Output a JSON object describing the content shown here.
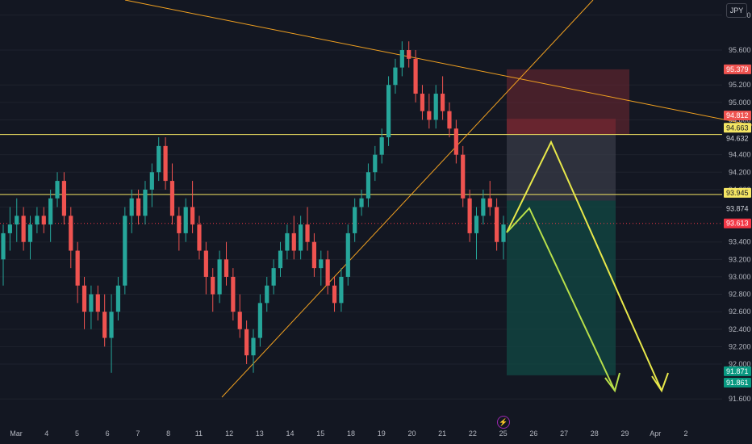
{
  "currency_label": "JPY",
  "event_icon": "lightning-icon",
  "colors": {
    "background": "#131722",
    "up": "#26a69a",
    "down": "#ef5350",
    "level": "#f5e663",
    "trendline": "#f0a020",
    "projection": "#e8e84a",
    "projection2": "#b8e04a",
    "stop_zone": "#6b2630",
    "target_zone": "#124a44",
    "current": "#f23645",
    "target_badge": "#089981"
  },
  "chart_data": {
    "type": "candlestick",
    "y_range": [
      91.5,
      96.1
    ],
    "y_ticks": [
      "96.000",
      "95.600",
      "95.200",
      "95.000",
      "94.800",
      "94.400",
      "94.200",
      "94.000",
      "93.800",
      "93.400",
      "93.200",
      "93.000",
      "92.800",
      "92.600",
      "92.400",
      "92.200",
      "92.000",
      "91.600"
    ],
    "x_ticks": [
      "Mar",
      "4",
      "5",
      "6",
      "7",
      "8",
      "11",
      "12",
      "13",
      "14",
      "15",
      "18",
      "19",
      "20",
      "21",
      "22",
      "25",
      "26",
      "27",
      "28",
      "29",
      "Apr",
      "2"
    ],
    "horizontal_levels": [
      94.632,
      93.945
    ],
    "price_badges": [
      {
        "label": "95.379",
        "value": 95.379,
        "role": "stop"
      },
      {
        "label": "94.812",
        "value": 94.812,
        "role": "stop"
      },
      {
        "label": "94.663",
        "value": 94.663,
        "role": "level"
      },
      {
        "label": "94.632",
        "value": 94.632,
        "role": "neutral"
      },
      {
        "label": "93.945",
        "value": 93.945,
        "role": "level"
      },
      {
        "label": "93.874",
        "value": 93.874,
        "role": "neutral"
      },
      {
        "label": "93.613",
        "value": 93.613,
        "role": "current"
      },
      {
        "label": "91.871",
        "value": 91.871,
        "role": "target"
      },
      {
        "label": "91.861",
        "value": 91.861,
        "role": "target"
      }
    ],
    "candles": [
      {
        "o": 93.2,
        "h": 93.6,
        "l": 92.9,
        "c": 93.5
      },
      {
        "o": 93.5,
        "h": 93.8,
        "l": 93.3,
        "c": 93.6
      },
      {
        "o": 93.6,
        "h": 93.9,
        "l": 93.4,
        "c": 93.7
      },
      {
        "o": 93.7,
        "h": 93.8,
        "l": 93.3,
        "c": 93.4
      },
      {
        "o": 93.4,
        "h": 93.7,
        "l": 93.2,
        "c": 93.6
      },
      {
        "o": 93.6,
        "h": 93.8,
        "l": 93.5,
        "c": 93.7
      },
      {
        "o": 93.7,
        "h": 93.8,
        "l": 93.5,
        "c": 93.6
      },
      {
        "o": 93.6,
        "h": 94.0,
        "l": 93.4,
        "c": 93.9
      },
      {
        "o": 93.9,
        "h": 94.2,
        "l": 93.8,
        "c": 94.1
      },
      {
        "o": 94.1,
        "h": 94.2,
        "l": 93.6,
        "c": 93.7
      },
      {
        "o": 93.7,
        "h": 93.8,
        "l": 93.1,
        "c": 93.3
      },
      {
        "o": 93.3,
        "h": 93.4,
        "l": 92.7,
        "c": 92.9
      },
      {
        "o": 92.9,
        "h": 93.0,
        "l": 92.4,
        "c": 92.6
      },
      {
        "o": 92.6,
        "h": 92.9,
        "l": 92.4,
        "c": 92.8
      },
      {
        "o": 92.8,
        "h": 92.9,
        "l": 92.5,
        "c": 92.6
      },
      {
        "o": 92.6,
        "h": 92.8,
        "l": 92.2,
        "c": 92.3
      },
      {
        "o": 92.3,
        "h": 92.8,
        "l": 91.9,
        "c": 92.6
      },
      {
        "o": 92.6,
        "h": 93.0,
        "l": 92.5,
        "c": 92.9
      },
      {
        "o": 92.9,
        "h": 93.8,
        "l": 92.8,
        "c": 93.7
      },
      {
        "o": 93.7,
        "h": 94.0,
        "l": 93.5,
        "c": 93.9
      },
      {
        "o": 93.9,
        "h": 94.0,
        "l": 93.6,
        "c": 93.7
      },
      {
        "o": 93.7,
        "h": 94.1,
        "l": 93.6,
        "c": 94.0
      },
      {
        "o": 94.0,
        "h": 94.3,
        "l": 93.8,
        "c": 94.2
      },
      {
        "o": 94.2,
        "h": 94.6,
        "l": 94.1,
        "c": 94.5
      },
      {
        "o": 94.5,
        "h": 94.6,
        "l": 94.0,
        "c": 94.1
      },
      {
        "o": 94.1,
        "h": 94.3,
        "l": 93.6,
        "c": 93.7
      },
      {
        "o": 93.7,
        "h": 93.8,
        "l": 93.3,
        "c": 93.5
      },
      {
        "o": 93.5,
        "h": 93.9,
        "l": 93.4,
        "c": 93.8
      },
      {
        "o": 93.8,
        "h": 94.1,
        "l": 93.5,
        "c": 93.6
      },
      {
        "o": 93.6,
        "h": 93.7,
        "l": 93.2,
        "c": 93.3
      },
      {
        "o": 93.3,
        "h": 93.4,
        "l": 92.8,
        "c": 93.0
      },
      {
        "o": 93.0,
        "h": 93.1,
        "l": 92.6,
        "c": 92.8
      },
      {
        "o": 92.8,
        "h": 93.3,
        "l": 92.7,
        "c": 93.2
      },
      {
        "o": 93.2,
        "h": 93.4,
        "l": 92.9,
        "c": 93.0
      },
      {
        "o": 93.0,
        "h": 93.1,
        "l": 92.5,
        "c": 92.6
      },
      {
        "o": 92.6,
        "h": 92.8,
        "l": 92.3,
        "c": 92.4
      },
      {
        "o": 92.4,
        "h": 92.5,
        "l": 92.0,
        "c": 92.1
      },
      {
        "o": 92.1,
        "h": 92.4,
        "l": 91.9,
        "c": 92.3
      },
      {
        "o": 92.3,
        "h": 92.8,
        "l": 92.2,
        "c": 92.7
      },
      {
        "o": 92.7,
        "h": 93.0,
        "l": 92.6,
        "c": 92.9
      },
      {
        "o": 92.9,
        "h": 93.2,
        "l": 92.8,
        "c": 93.1
      },
      {
        "o": 93.1,
        "h": 93.4,
        "l": 93.0,
        "c": 93.3
      },
      {
        "o": 93.3,
        "h": 93.6,
        "l": 93.2,
        "c": 93.5
      },
      {
        "o": 93.5,
        "h": 93.7,
        "l": 93.2,
        "c": 93.3
      },
      {
        "o": 93.3,
        "h": 93.7,
        "l": 93.2,
        "c": 93.6
      },
      {
        "o": 93.6,
        "h": 93.8,
        "l": 93.3,
        "c": 93.4
      },
      {
        "o": 93.4,
        "h": 93.5,
        "l": 93.0,
        "c": 93.1
      },
      {
        "o": 93.1,
        "h": 93.3,
        "l": 92.9,
        "c": 93.2
      },
      {
        "o": 93.2,
        "h": 93.3,
        "l": 92.8,
        "c": 92.9
      },
      {
        "o": 92.9,
        "h": 93.0,
        "l": 92.6,
        "c": 92.7
      },
      {
        "o": 92.7,
        "h": 93.1,
        "l": 92.6,
        "c": 93.0
      },
      {
        "o": 93.0,
        "h": 93.6,
        "l": 92.9,
        "c": 93.5
      },
      {
        "o": 93.5,
        "h": 93.9,
        "l": 93.4,
        "c": 93.8
      },
      {
        "o": 93.8,
        "h": 94.0,
        "l": 93.7,
        "c": 93.9
      },
      {
        "o": 93.9,
        "h": 94.3,
        "l": 93.8,
        "c": 94.2
      },
      {
        "o": 94.2,
        "h": 94.5,
        "l": 94.1,
        "c": 94.4
      },
      {
        "o": 94.4,
        "h": 94.7,
        "l": 94.3,
        "c": 94.6
      },
      {
        "o": 94.6,
        "h": 95.3,
        "l": 94.5,
        "c": 95.2
      },
      {
        "o": 95.2,
        "h": 95.5,
        "l": 95.1,
        "c": 95.4
      },
      {
        "o": 95.4,
        "h": 95.7,
        "l": 95.3,
        "c": 95.6
      },
      {
        "o": 95.6,
        "h": 95.7,
        "l": 95.4,
        "c": 95.5
      },
      {
        "o": 95.5,
        "h": 95.6,
        "l": 95.0,
        "c": 95.1
      },
      {
        "o": 95.1,
        "h": 95.2,
        "l": 94.8,
        "c": 94.9
      },
      {
        "o": 94.9,
        "h": 95.1,
        "l": 94.7,
        "c": 94.8
      },
      {
        "o": 94.8,
        "h": 95.2,
        "l": 94.7,
        "c": 95.1
      },
      {
        "o": 95.1,
        "h": 95.3,
        "l": 94.8,
        "c": 94.9
      },
      {
        "o": 94.9,
        "h": 95.0,
        "l": 94.6,
        "c": 94.7
      },
      {
        "o": 94.7,
        "h": 94.8,
        "l": 94.3,
        "c": 94.4
      },
      {
        "o": 94.4,
        "h": 94.5,
        "l": 93.8,
        "c": 93.9
      },
      {
        "o": 93.9,
        "h": 94.0,
        "l": 93.4,
        "c": 93.5
      },
      {
        "o": 93.5,
        "h": 93.8,
        "l": 93.2,
        "c": 93.7
      },
      {
        "o": 93.7,
        "h": 94.0,
        "l": 93.6,
        "c": 93.9
      },
      {
        "o": 93.9,
        "h": 94.1,
        "l": 93.7,
        "c": 93.8
      },
      {
        "o": 93.8,
        "h": 93.9,
        "l": 93.3,
        "c": 93.4
      },
      {
        "o": 93.4,
        "h": 93.7,
        "l": 93.2,
        "c": 93.6
      }
    ]
  }
}
